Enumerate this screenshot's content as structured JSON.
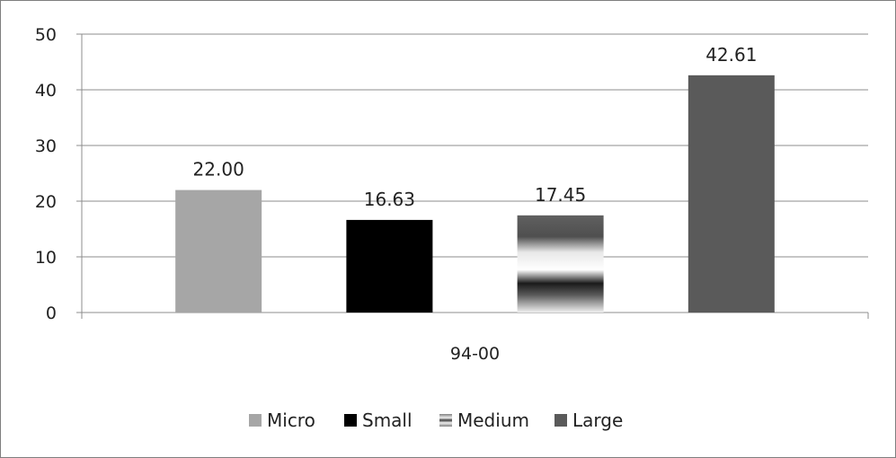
{
  "chart_data": {
    "type": "bar",
    "categories": [
      "94-00"
    ],
    "series": [
      {
        "name": "Micro",
        "values": [
          22.0
        ],
        "label": "22.00",
        "color": "#a6a6a6",
        "pattern": "solid"
      },
      {
        "name": "Small",
        "values": [
          16.63
        ],
        "label": "16.63",
        "color": "#000000",
        "pattern": "solid"
      },
      {
        "name": "Medium",
        "values": [
          17.45
        ],
        "label": "17.45",
        "color": "#595959",
        "pattern": "gradient-stripes"
      },
      {
        "name": "Large",
        "values": [
          42.61
        ],
        "label": "42.61",
        "color": "#5a5a5a",
        "pattern": "solid"
      }
    ],
    "yticks": [
      "0",
      "10",
      "20",
      "30",
      "40",
      "50"
    ],
    "ylim": [
      0,
      50
    ],
    "grid": true,
    "legend": "bottom",
    "title": "",
    "xlabel": "",
    "ylabel": ""
  }
}
